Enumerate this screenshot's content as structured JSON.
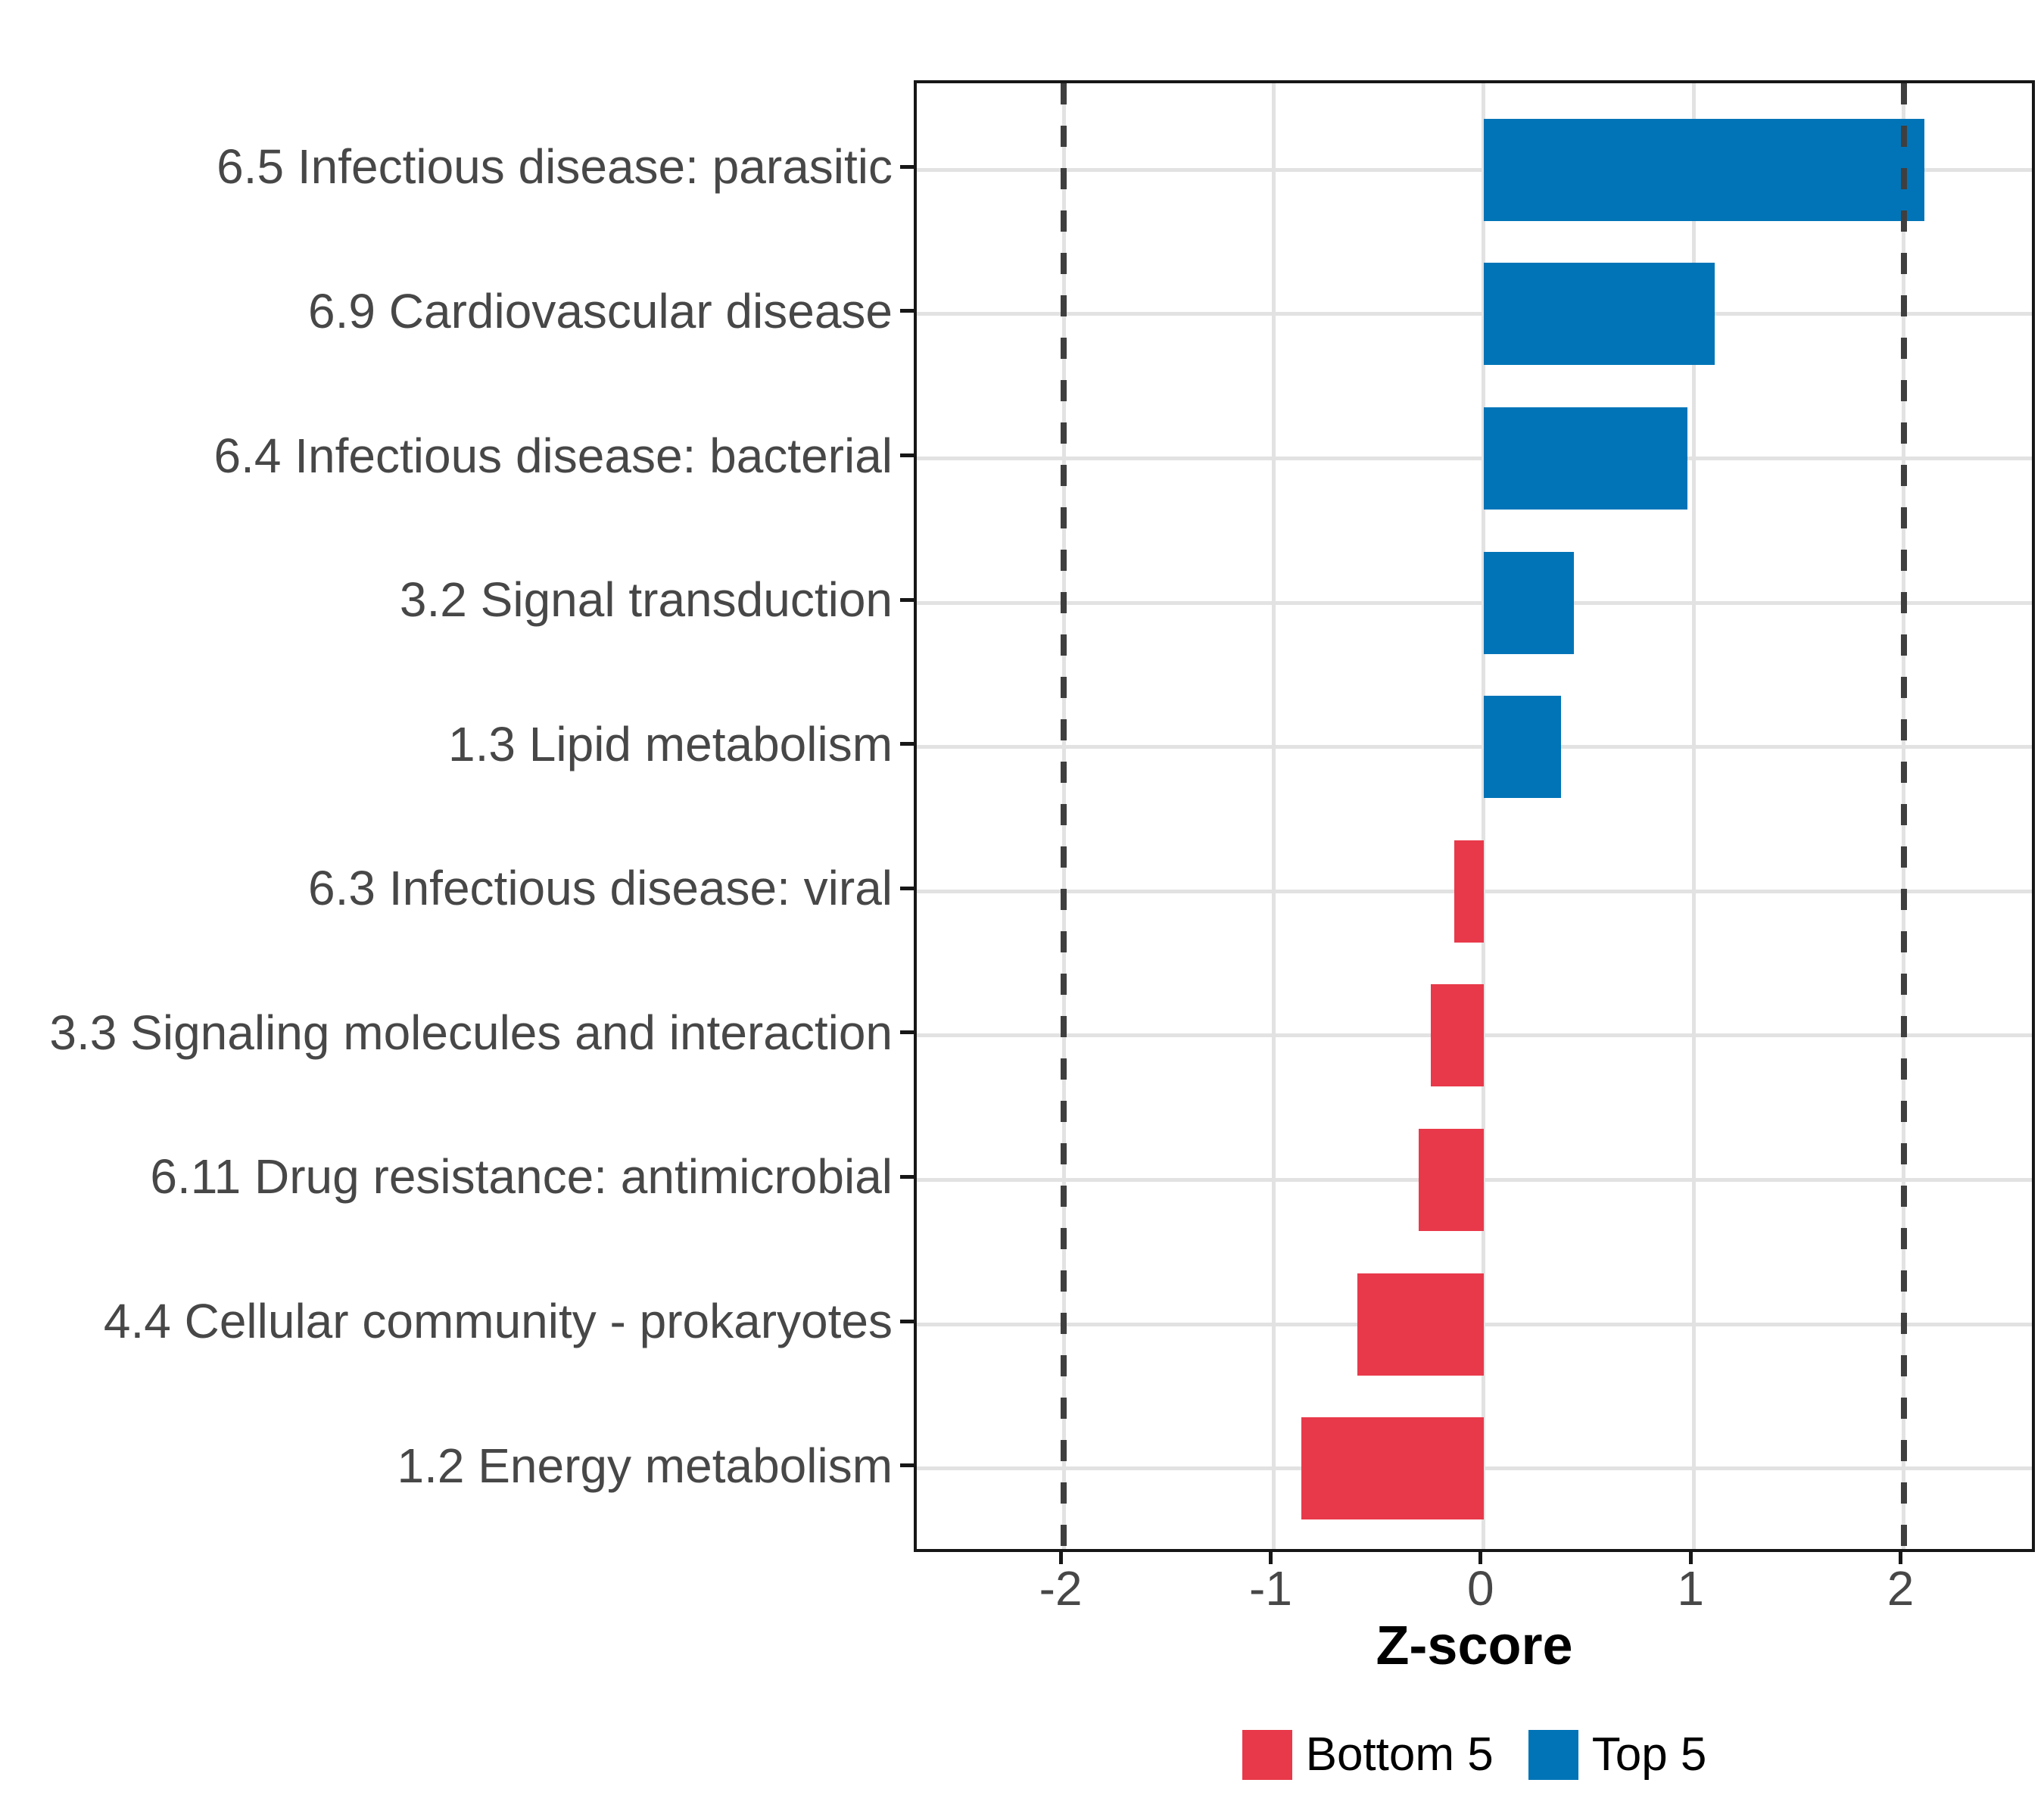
{
  "chart_data": {
    "type": "bar",
    "orientation": "horizontal",
    "title": "",
    "xlabel": "Z-score",
    "ylabel": "",
    "categories": [
      "6.5 Infectious disease: parasitic",
      "6.9 Cardiovascular disease",
      "6.4 Infectious disease: bacterial",
      "3.2 Signal transduction",
      "1.3 Lipid metabolism",
      "6.3 Infectious disease: viral",
      "3.3 Signaling molecules and interaction",
      "6.11 Drug resistance: antimicrobial",
      "4.4 Cellular community - prokaryotes",
      "1.2 Energy metabolism"
    ],
    "values": [
      2.1,
      1.1,
      0.97,
      0.43,
      0.37,
      -0.14,
      -0.25,
      -0.31,
      -0.6,
      -0.87
    ],
    "xlim": [
      -2.7,
      2.64
    ],
    "x_ticks": [
      -2,
      -1,
      0,
      1,
      2
    ],
    "x_tick_labels": [
      "-2",
      "-1",
      "0",
      "1",
      "2"
    ],
    "reference_lines": [
      -2,
      2
    ],
    "grid": "major",
    "legend": {
      "position": "bottom",
      "items": [
        {
          "label": "Bottom 5",
          "color": "#E8394A"
        },
        {
          "label": "Top 5",
          "color": "#0074B7"
        }
      ]
    },
    "bar_colors": {
      "positive": "#0074B7",
      "negative": "#E8394A"
    }
  },
  "colors": {
    "background": "#FFFFFF",
    "panel_border": "#171717",
    "gridline": "#E2E2E2",
    "reference_line": "#3F3F3F",
    "axis_text": "#474747",
    "axis_title": "#000000",
    "tick_mark": "#171717"
  }
}
